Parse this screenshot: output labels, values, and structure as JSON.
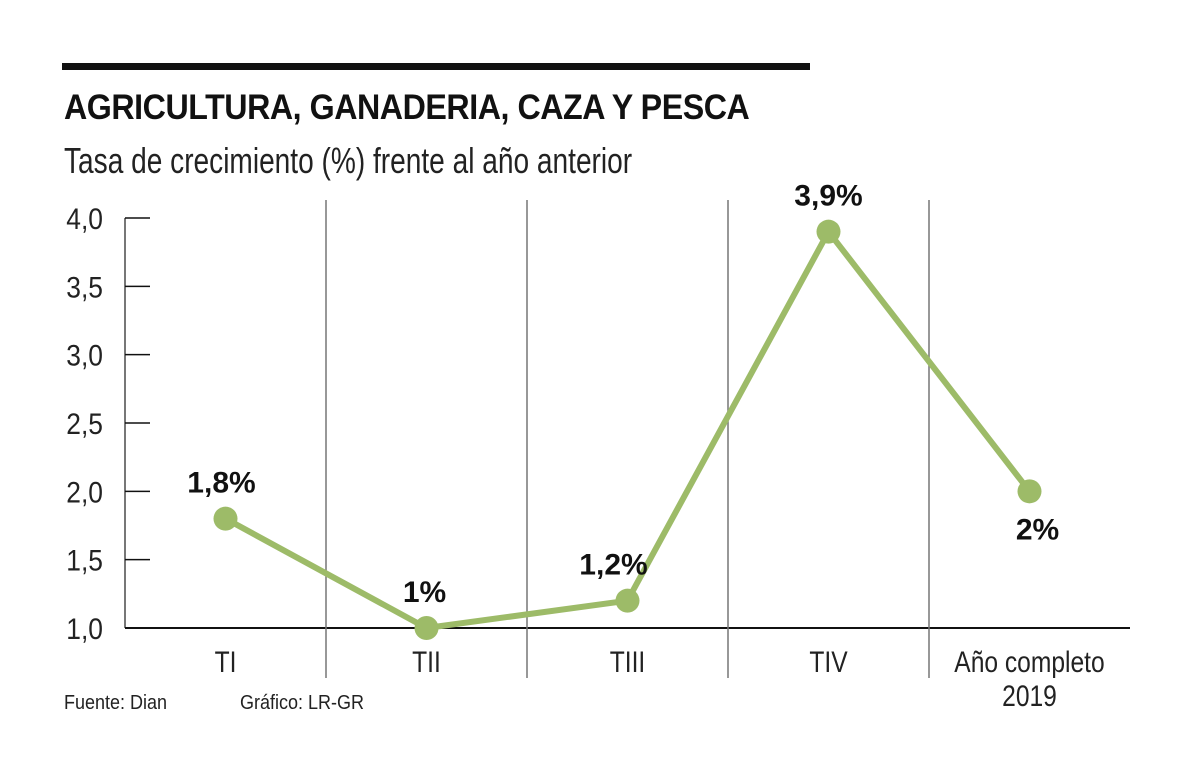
{
  "title": "AGRICULTURA, GANADERIA, CAZA Y PESCA",
  "subtitle": "Tasa de crecimiento (%) frente al año anterior",
  "source": "Fuente: Dian",
  "credit": "Gráfico: LR-GR",
  "colors": {
    "series": "#9dbb68",
    "text": "#111111",
    "axis": "#777777"
  },
  "chart_data": {
    "type": "line",
    "title": "AGRICULTURA, GANADERIA, CAZA Y PESCA",
    "subtitle": "Tasa de crecimiento (%) frente al año anterior",
    "categories": [
      "TI",
      "TII",
      "TIII",
      "TIV",
      "Año completo 2019"
    ],
    "category_lines": [
      [
        "TI"
      ],
      [
        "TII"
      ],
      [
        "TIII"
      ],
      [
        "TIV"
      ],
      [
        "Año completo",
        "2019"
      ]
    ],
    "values": [
      1.8,
      1.0,
      1.2,
      3.9,
      2.0
    ],
    "data_labels": [
      "1,8%",
      "1%",
      "1,2%",
      "3,9%",
      "2%"
    ],
    "yticks": [
      "1,0",
      "1,5",
      "2,0",
      "2,5",
      "3,0",
      "3,5",
      "4,0"
    ],
    "ytick_values": [
      1.0,
      1.5,
      2.0,
      2.5,
      3.0,
      3.5,
      4.0
    ],
    "ylim": [
      1.0,
      4.0
    ],
    "xlabel": "",
    "ylabel": "",
    "grid": false,
    "legend": "none"
  }
}
